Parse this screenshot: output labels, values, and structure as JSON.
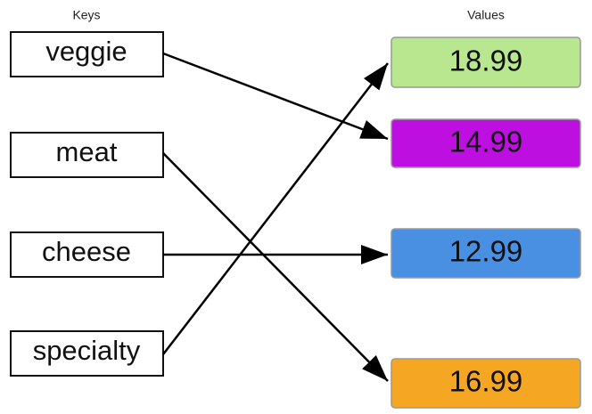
{
  "headers": {
    "keys": "Keys",
    "values": "Values"
  },
  "keys": [
    "veggie",
    "meat",
    "cheese",
    "specialty"
  ],
  "values": [
    "18.99",
    "14.99",
    "12.99",
    "16.99"
  ]
}
